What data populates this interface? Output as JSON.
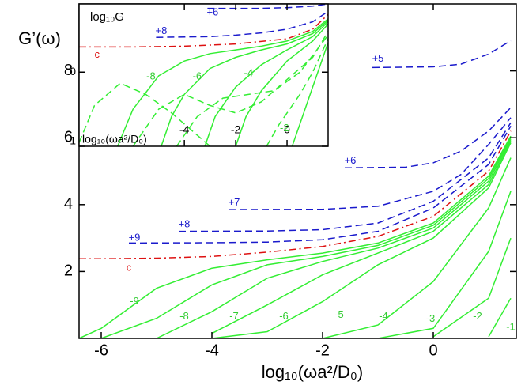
{
  "chart_data": [
    {
      "type": "line",
      "xlabel": "log₁₀(ωa²/D₀)",
      "ylabel": "G’(ω)",
      "xlim": [
        -6.4,
        1.5
      ],
      "ylim": [
        0,
        10
      ],
      "xticks": [
        -6,
        -4,
        -2,
        0
      ],
      "yticks": [
        2,
        4,
        6,
        8
      ],
      "series": [
        {
          "color": "#dd1111",
          "style": "dashdot",
          "x": [
            -6.4,
            -6,
            -5,
            -4,
            -3,
            -2,
            -1,
            0,
            1,
            1.4
          ],
          "values": [
            2.38,
            2.38,
            2.4,
            2.45,
            2.58,
            2.75,
            3.05,
            3.65,
            5.0,
            6.2
          ]
        },
        {
          "color": "#1a1acc",
          "style": "dashed",
          "x": [
            -5.5,
            -4,
            -3,
            -2,
            -1,
            0,
            1,
            1.4
          ],
          "values": [
            2.85,
            2.86,
            2.88,
            2.95,
            3.2,
            3.9,
            5.2,
            6.35
          ]
        },
        {
          "color": "#1a1acc",
          "style": "dashed",
          "x": [
            -4.6,
            -3,
            -2,
            -1,
            0,
            1,
            1.4
          ],
          "values": [
            3.2,
            3.21,
            3.25,
            3.45,
            4.1,
            5.4,
            6.45
          ]
        },
        {
          "color": "#1a1acc",
          "style": "dashed",
          "x": [
            -3.7,
            -2,
            -1,
            0,
            0.5,
            1,
            1.4
          ],
          "values": [
            3.85,
            3.86,
            3.95,
            4.4,
            4.9,
            5.8,
            6.6
          ]
        },
        {
          "color": "#1a1acc",
          "style": "dashed",
          "x": [
            -1.6,
            -0.5,
            0,
            0.5,
            1,
            1.4
          ],
          "values": [
            5.1,
            5.12,
            5.25,
            5.6,
            6.2,
            6.9
          ]
        },
        {
          "color": "#1a1acc",
          "style": "dashed",
          "x": [
            -1.1,
            0,
            0.5,
            1,
            1.4
          ],
          "values": [
            8.1,
            8.12,
            8.2,
            8.5,
            8.9
          ]
        },
        {
          "color": "#33ee33",
          "style": "solid",
          "x": [
            -6.4,
            -6,
            -5,
            -4,
            -3,
            -2,
            -1,
            0,
            1,
            1.4
          ],
          "values": [
            0,
            0.3,
            1.5,
            2.1,
            2.35,
            2.55,
            2.85,
            3.45,
            4.85,
            6.05
          ]
        },
        {
          "color": "#33ee33",
          "style": "solid",
          "x": [
            -6,
            -5,
            -4,
            -3,
            -2,
            -1,
            0,
            1,
            1.4
          ],
          "values": [
            0,
            0.6,
            1.6,
            2.2,
            2.45,
            2.78,
            3.38,
            4.78,
            6.0
          ]
        },
        {
          "color": "#33ee33",
          "style": "solid",
          "x": [
            -5,
            -4,
            -3,
            -2,
            -1,
            0,
            1,
            1.4
          ],
          "values": [
            0,
            0.8,
            1.8,
            2.3,
            2.7,
            3.3,
            4.7,
            5.95
          ]
        },
        {
          "color": "#33ee33",
          "style": "solid",
          "x": [
            -4,
            -3,
            -2,
            -1,
            0,
            1,
            1.4
          ],
          "values": [
            0.15,
            1.0,
            1.9,
            2.55,
            3.2,
            4.6,
            5.9
          ]
        },
        {
          "color": "#33ee33",
          "style": "solid",
          "x": [
            -4,
            -3,
            -2,
            -1,
            0,
            1,
            1.4
          ],
          "values": [
            0,
            0.2,
            1.1,
            2.2,
            3.0,
            4.5,
            5.85
          ]
        },
        {
          "color": "#33ee33",
          "style": "solid",
          "x": [
            -2,
            -1,
            0,
            1,
            1.4
          ],
          "values": [
            0,
            0.4,
            1.7,
            3.9,
            5.4
          ]
        },
        {
          "color": "#33ee33",
          "style": "solid",
          "x": [
            -1,
            0,
            1,
            1.4
          ],
          "values": [
            0,
            0.3,
            2.6,
            4.4
          ]
        },
        {
          "color": "#33ee33",
          "style": "solid",
          "x": [
            0,
            1,
            1.4
          ],
          "values": [
            0.05,
            1.2,
            3.0
          ]
        },
        {
          "color": "#33ee33",
          "style": "solid",
          "x": [
            1,
            1.4
          ],
          "values": [
            0.05,
            1.2
          ]
        }
      ],
      "annotations": [
        {
          "text": "c",
          "x": -5.5,
          "y": 2.1,
          "color": "#dd1111"
        },
        {
          "text": "+9",
          "x": -5.4,
          "y": 3.0,
          "color": "#1a1acc"
        },
        {
          "text": "+8",
          "x": -4.5,
          "y": 3.4,
          "color": "#1a1acc"
        },
        {
          "text": "+7",
          "x": -3.6,
          "y": 4.05,
          "color": "#1a1acc"
        },
        {
          "text": "+6",
          "x": -1.5,
          "y": 5.3,
          "color": "#1a1acc"
        },
        {
          "text": "+5",
          "x": -1.0,
          "y": 8.35,
          "color": "#1a1acc"
        },
        {
          "text": "-9",
          "x": -5.4,
          "y": 1.1,
          "color": "#33cc33"
        },
        {
          "text": "-8",
          "x": -4.5,
          "y": 0.65,
          "color": "#33cc33"
        },
        {
          "text": "-7",
          "x": -3.6,
          "y": 0.65,
          "color": "#33cc33"
        },
        {
          "text": "-6",
          "x": -2.7,
          "y": 0.65,
          "color": "#33cc33"
        },
        {
          "text": "-5",
          "x": -1.7,
          "y": 0.7,
          "color": "#33cc33"
        },
        {
          "text": "-4",
          "x": -0.9,
          "y": 0.65,
          "color": "#33cc33"
        },
        {
          "text": "-3",
          "x": -0.05,
          "y": 0.58,
          "color": "#33cc33"
        },
        {
          "text": "-2",
          "x": 0.8,
          "y": 0.65,
          "color": "#33cc33"
        },
        {
          "text": "-1",
          "x": 1.4,
          "y": 0.33,
          "color": "#33cc33"
        }
      ]
    },
    {
      "type": "line",
      "xlabel": "log₁₀(ωa²/D₀)",
      "ylabel": "log₁₀G",
      "xlim": [
        -8.1,
        1.6
      ],
      "ylim": [
        -1,
        0.92
      ],
      "xticks": [
        -4,
        -2,
        0
      ],
      "yticks": [
        -1,
        0
      ],
      "series": [
        {
          "color": "#dd1111",
          "style": "dashdot",
          "x": [
            -8.1,
            -6,
            -4,
            -2,
            0,
            1,
            1.6
          ],
          "values": [
            0.34,
            0.34,
            0.35,
            0.38,
            0.45,
            0.58,
            0.78
          ]
        },
        {
          "color": "#1a1acc",
          "style": "dashed",
          "x": [
            -5.1,
            -3,
            -2,
            -1,
            0,
            1,
            1.6
          ],
          "values": [
            0.47,
            0.48,
            0.5,
            0.53,
            0.58,
            0.68,
            0.82
          ]
        },
        {
          "color": "#1a1acc",
          "style": "dashed",
          "x": [
            -3.1,
            -1,
            0,
            1,
            1.6
          ],
          "values": [
            0.86,
            0.86,
            0.87,
            0.89,
            0.92
          ]
        },
        {
          "color": "#33ee33",
          "style": "solid",
          "x": [
            -6.6,
            -6,
            -5,
            -4,
            -3,
            -2,
            -1,
            0,
            1,
            1.6
          ],
          "values": [
            -1,
            -0.5,
            -0.05,
            0.15,
            0.25,
            0.3,
            0.35,
            0.42,
            0.55,
            0.72
          ]
        },
        {
          "color": "#33ee33",
          "style": "solid",
          "x": [
            -4.9,
            -4.5,
            -4,
            -3,
            -2,
            -1,
            0,
            1,
            1.6
          ],
          "values": [
            -1,
            -0.6,
            -0.3,
            0.05,
            0.2,
            0.3,
            0.38,
            0.52,
            0.7
          ]
        },
        {
          "color": "#33ee33",
          "style": "solid",
          "x": [
            -3.2,
            -2.8,
            -2,
            -1,
            0,
            1,
            1.6
          ],
          "values": [
            -1,
            -0.6,
            -0.2,
            0.1,
            0.3,
            0.48,
            0.68
          ]
        },
        {
          "color": "#33ee33",
          "style": "solid",
          "x": [
            -2,
            -1.6,
            -1,
            0,
            1,
            1.6
          ],
          "values": [
            -1,
            -0.6,
            -0.25,
            0.15,
            0.42,
            0.65
          ]
        },
        {
          "color": "#33ee33",
          "style": "solid",
          "x": [
            0.2,
            0.5,
            1,
            1.6
          ],
          "values": [
            -1,
            -0.7,
            -0.2,
            0.4
          ]
        },
        {
          "color": "#33ee33",
          "style": "dashed",
          "x": [
            -8.1,
            -7.5,
            -6.5,
            -5.5,
            -4.5,
            -3.5,
            -3
          ],
          "values": [
            -0.95,
            -0.45,
            -0.15,
            -0.3,
            -0.55,
            -0.85,
            -1
          ]
        },
        {
          "color": "#33ee33",
          "style": "dashed",
          "x": [
            -6,
            -5,
            -4,
            -3,
            -2,
            -1,
            0,
            1,
            1.6
          ],
          "values": [
            -1,
            -0.5,
            -0.3,
            -0.45,
            -0.55,
            -0.4,
            -0.1,
            0.2,
            0.55
          ]
        },
        {
          "color": "#33ee33",
          "style": "dashed",
          "x": [
            -4.3,
            -3.5,
            -2.5,
            -1.5,
            -0.5,
            0.5,
            1.6
          ],
          "values": [
            -1,
            -0.6,
            -0.35,
            -0.3,
            -0.25,
            0,
            0.5
          ]
        },
        {
          "color": "#33ee33",
          "style": "dashed",
          "x": [
            -0.8,
            -0.3,
            0.5,
            1,
            1.6
          ],
          "values": [
            -1,
            -0.7,
            -0.3,
            0,
            0.45
          ]
        }
      ],
      "annotations": [
        {
          "text": "+6",
          "x": -2.9,
          "y": 0.8,
          "color": "#1a1acc"
        },
        {
          "text": "+8",
          "x": -4.9,
          "y": 0.55,
          "color": "#1a1acc"
        },
        {
          "text": "c",
          "x": -7.4,
          "y": 0.23,
          "color": "#dd1111"
        },
        {
          "text": "-8",
          "x": -5.3,
          "y": -0.06,
          "color": "#33cc33"
        },
        {
          "text": "-6",
          "x": -3.5,
          "y": -0.06,
          "color": "#33cc33"
        },
        {
          "text": "-4",
          "x": -1.5,
          "y": -0.02,
          "color": "#33cc33"
        },
        {
          "text": "-2",
          "x": -0.1,
          "y": -0.76,
          "color": "#33cc33"
        }
      ]
    }
  ]
}
